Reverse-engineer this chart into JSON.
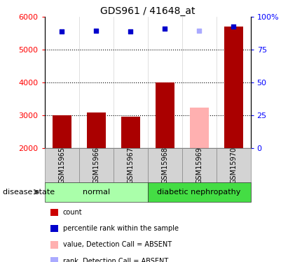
{
  "title": "GDS961 / 41648_at",
  "samples": [
    "GSM15965",
    "GSM15966",
    "GSM15967",
    "GSM15968",
    "GSM15969",
    "GSM15970"
  ],
  "bar_values": [
    3000,
    3075,
    2960,
    4010,
    3230,
    5700
  ],
  "bar_colors": [
    "#aa0000",
    "#aa0000",
    "#aa0000",
    "#aa0000",
    "#ffb0b0",
    "#aa0000"
  ],
  "rank_values": [
    5560,
    5590,
    5550,
    5640,
    5590,
    5720
  ],
  "rank_colors": [
    "#0000cc",
    "#0000cc",
    "#0000cc",
    "#0000cc",
    "#aaaaff",
    "#0000cc"
  ],
  "y_min": 2000,
  "y_max": 6000,
  "y_ticks": [
    2000,
    3000,
    4000,
    5000,
    6000
  ],
  "y_labels": [
    "2000",
    "3000",
    "4000",
    "5000",
    "6000"
  ],
  "y2_ticks": [
    0,
    25,
    50,
    75,
    100
  ],
  "y2_labels": [
    "0",
    "25",
    "50",
    "75",
    "100%"
  ],
  "dotted_lines": [
    3000,
    4000,
    5000
  ],
  "group_labels": [
    "normal",
    "diabetic nephropathy"
  ],
  "group_ranges": [
    [
      0,
      3
    ],
    [
      3,
      6
    ]
  ],
  "group_colors": [
    "#aaffaa",
    "#44dd44"
  ],
  "disease_state_label": "disease state",
  "bar_width": 0.55,
  "legend_items": [
    {
      "color": "#cc0000",
      "label": "count"
    },
    {
      "color": "#0000cc",
      "label": "percentile rank within the sample"
    },
    {
      "color": "#ffb0b0",
      "label": "value, Detection Call = ABSENT"
    },
    {
      "color": "#aaaaff",
      "label": "rank, Detection Call = ABSENT"
    }
  ]
}
